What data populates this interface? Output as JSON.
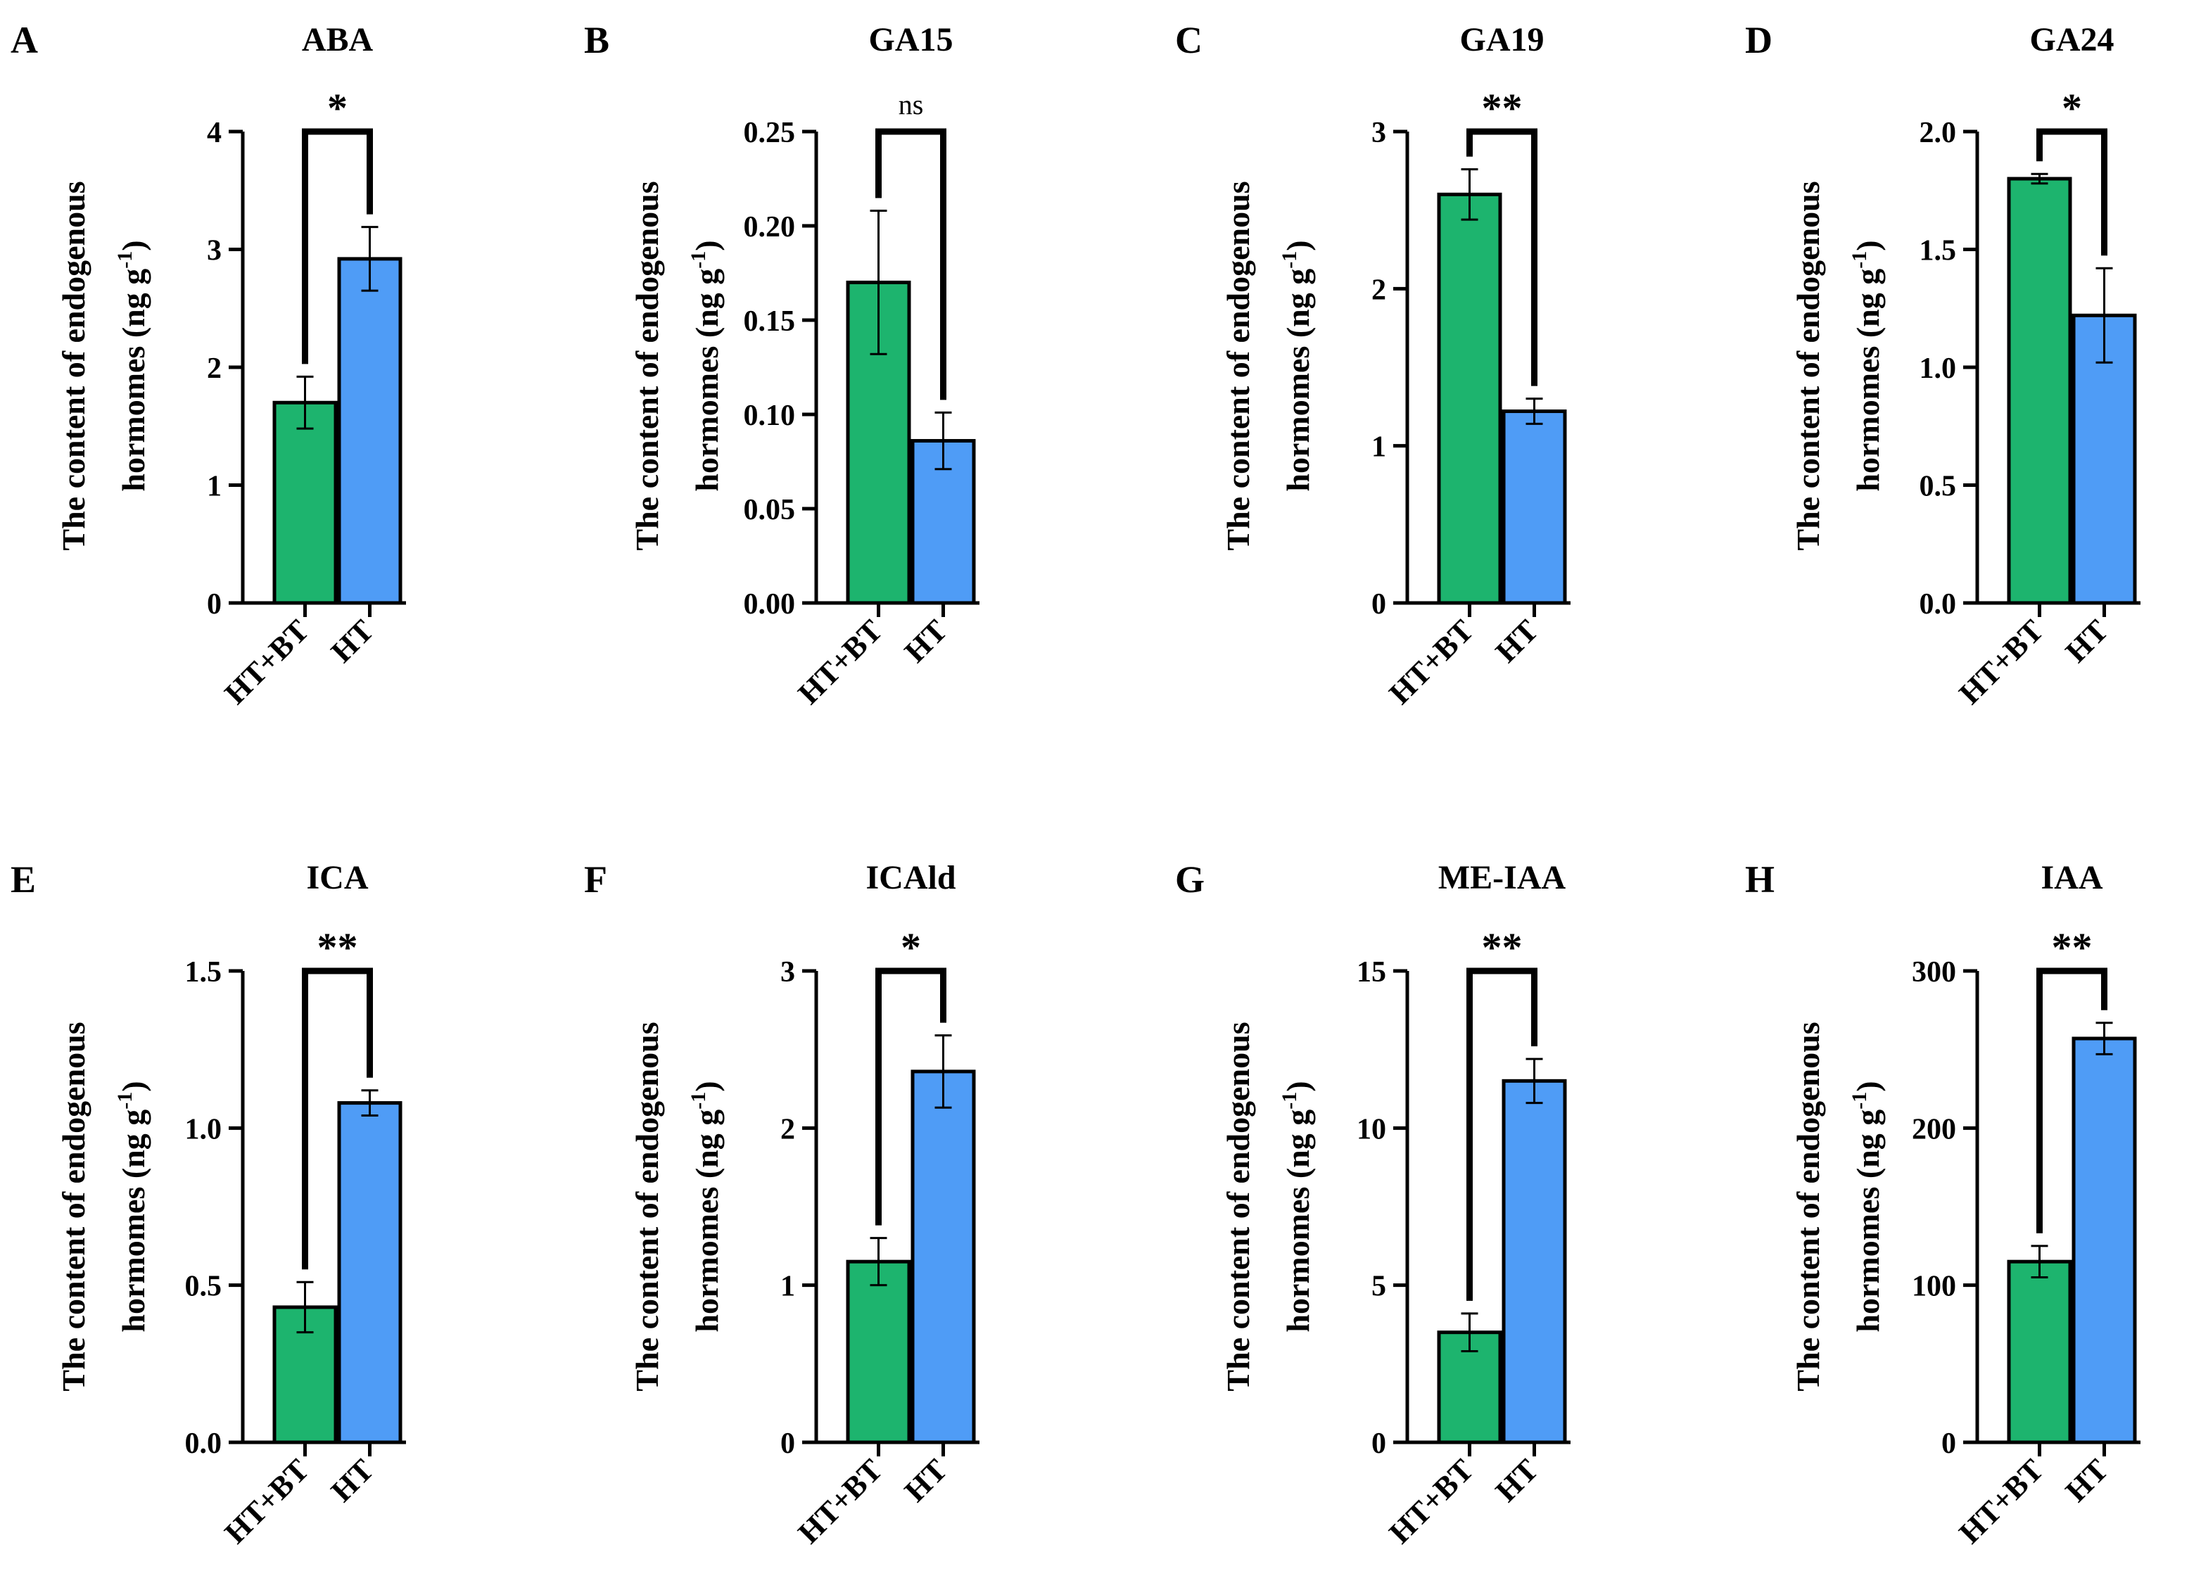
{
  "figure": {
    "group_colors": {
      "HT+BT": "#1db46e",
      "HT": "#4f9cf6"
    },
    "ylabel_line1": "The content of endogenous",
    "ylabel_line2": "hormomes (ng g",
    "ylabel_unit_sup": "-1",
    "ylabel_close": ")"
  },
  "chart_data": [
    {
      "type": "bar",
      "panel": "A",
      "title": "ABA",
      "categories": [
        "HT+BT",
        "HT"
      ],
      "values": [
        1.7,
        2.92
      ],
      "errors": [
        0.22,
        0.27
      ],
      "ylim": [
        0,
        4
      ],
      "yticks": [
        0,
        1,
        2,
        3,
        4
      ],
      "ytick_labels": [
        "0",
        "1",
        "2",
        "3",
        "4"
      ],
      "significance": "*"
    },
    {
      "type": "bar",
      "panel": "B",
      "title": "GA15",
      "categories": [
        "HT+BT",
        "HT"
      ],
      "values": [
        0.17,
        0.086
      ],
      "errors": [
        0.038,
        0.015
      ],
      "ylim": [
        0,
        0.25
      ],
      "yticks": [
        0,
        0.05,
        0.1,
        0.15,
        0.2,
        0.25
      ],
      "ytick_labels": [
        "0.00",
        "0.05",
        "0.10",
        "0.15",
        "0.20",
        "0.25"
      ],
      "significance": "ns"
    },
    {
      "type": "bar",
      "panel": "C",
      "title": "GA19",
      "categories": [
        "HT+BT",
        "HT"
      ],
      "values": [
        2.6,
        1.22
      ],
      "errors": [
        0.16,
        0.08
      ],
      "ylim": [
        0,
        3
      ],
      "yticks": [
        0,
        1,
        2,
        3
      ],
      "ytick_labels": [
        "0",
        "1",
        "2",
        "3"
      ],
      "significance": "**"
    },
    {
      "type": "bar",
      "panel": "D",
      "title": "GA24",
      "categories": [
        "HT+BT",
        "HT"
      ],
      "values": [
        1.8,
        1.22
      ],
      "errors": [
        0.02,
        0.2
      ],
      "ylim": [
        0,
        2
      ],
      "yticks": [
        0,
        0.5,
        1,
        1.5,
        2
      ],
      "ytick_labels": [
        "0.0",
        "0.5",
        "1.0",
        "1.5",
        "2.0"
      ],
      "significance": "*"
    },
    {
      "type": "bar",
      "panel": "E",
      "title": "ICA",
      "categories": [
        "HT+BT",
        "HT"
      ],
      "values": [
        0.43,
        1.08
      ],
      "errors": [
        0.08,
        0.04
      ],
      "ylim": [
        0,
        1.5
      ],
      "yticks": [
        0,
        0.5,
        1,
        1.5
      ],
      "ytick_labels": [
        "0.0",
        "0.5",
        "1.0",
        "1.5"
      ],
      "significance": "**"
    },
    {
      "type": "bar",
      "panel": "F",
      "title": "ICAld",
      "categories": [
        "HT+BT",
        "HT"
      ],
      "values": [
        1.15,
        2.36
      ],
      "errors": [
        0.15,
        0.23
      ],
      "ylim": [
        0,
        3
      ],
      "yticks": [
        0,
        1,
        2,
        3
      ],
      "ytick_labels": [
        "0",
        "1",
        "2",
        "3"
      ],
      "significance": "*"
    },
    {
      "type": "bar",
      "panel": "G",
      "title": "ME-IAA",
      "categories": [
        "HT+BT",
        "HT"
      ],
      "values": [
        3.5,
        11.5
      ],
      "errors": [
        0.6,
        0.7
      ],
      "ylim": [
        0,
        15
      ],
      "yticks": [
        0,
        5,
        10,
        15
      ],
      "ytick_labels": [
        "0",
        "5",
        "10",
        "15"
      ],
      "significance": "**"
    },
    {
      "type": "bar",
      "panel": "H",
      "title": "IAA",
      "categories": [
        "HT+BT",
        "HT"
      ],
      "values": [
        115,
        257
      ],
      "errors": [
        10,
        10
      ],
      "ylim": [
        0,
        300
      ],
      "yticks": [
        0,
        100,
        200,
        300
      ],
      "ytick_labels": [
        "0",
        "100",
        "200",
        "300"
      ],
      "significance": "**"
    }
  ]
}
